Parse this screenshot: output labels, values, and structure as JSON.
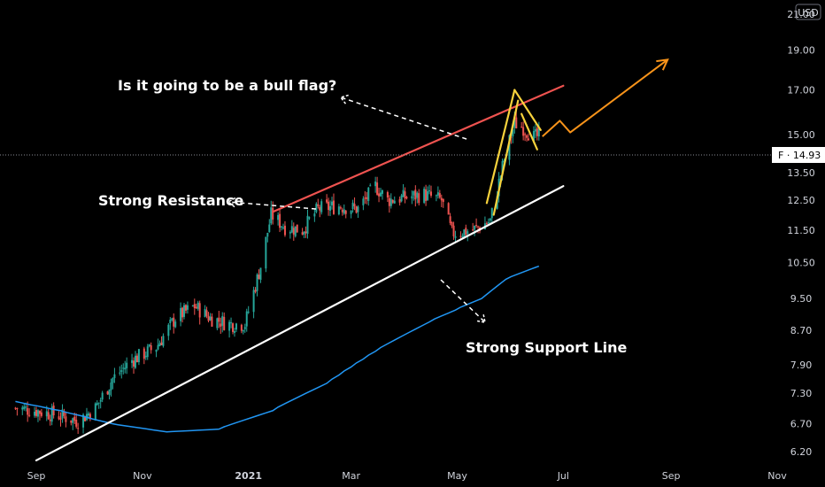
{
  "chart_data": {
    "type": "candlestick",
    "currency": "USD",
    "ticker": "F",
    "last_price_label": "F · 14.93",
    "last_price": 14.93,
    "y_scale": "log",
    "ylim": [
      6.05,
      23.0
    ],
    "y_ticks": [
      "6.20",
      "6.70",
      "7.30",
      "7.90",
      "8.70",
      "9.50",
      "10.50",
      "11.50",
      "12.50",
      "13.50",
      "15.00",
      "17.00",
      "19.00",
      "21.00"
    ],
    "x_ticks": [
      {
        "label": "Sep",
        "date": "2020-09-01",
        "bold": false
      },
      {
        "label": "Nov",
        "date": "2020-11-01",
        "bold": false
      },
      {
        "label": "2021",
        "date": "2021-01-01",
        "bold": true
      },
      {
        "label": "Mar",
        "date": "2021-03-01",
        "bold": false
      },
      {
        "label": "May",
        "date": "2021-05-01",
        "bold": false
      },
      {
        "label": "Jul",
        "date": "2021-07-01",
        "bold": false
      },
      {
        "label": "Sep",
        "date": "2021-09-01",
        "bold": false
      },
      {
        "label": "Nov",
        "date": "2021-11-01",
        "bold": false
      }
    ],
    "price_path": [
      [
        "2020-08-20",
        7.0
      ],
      [
        "2020-09-01",
        6.95
      ],
      [
        "2020-09-15",
        6.85
      ],
      [
        "2020-09-25",
        6.75
      ],
      [
        "2020-10-05",
        7.0
      ],
      [
        "2020-10-15",
        7.6
      ],
      [
        "2020-10-26",
        8.0
      ],
      [
        "2020-11-09",
        8.3
      ],
      [
        "2020-11-20",
        9.0
      ],
      [
        "2020-12-01",
        9.3
      ],
      [
        "2020-12-10",
        9.0
      ],
      [
        "2020-12-21",
        8.85
      ],
      [
        "2020-12-30",
        8.85
      ],
      [
        "2021-01-08",
        10.4
      ],
      [
        "2021-01-14",
        12.0
      ],
      [
        "2021-01-22",
        11.6
      ],
      [
        "2021-02-01",
        11.5
      ],
      [
        "2021-02-10",
        12.2
      ],
      [
        "2021-02-22",
        12.3
      ],
      [
        "2021-03-05",
        12.2
      ],
      [
        "2021-03-15",
        13.0
      ],
      [
        "2021-03-22",
        12.5
      ],
      [
        "2021-04-01",
        12.6
      ],
      [
        "2021-04-12",
        12.7
      ],
      [
        "2021-04-22",
        12.5
      ],
      [
        "2021-04-28",
        11.4
      ],
      [
        "2021-05-10",
        11.5
      ],
      [
        "2021-05-20",
        11.8
      ],
      [
        "2021-05-28",
        14.0
      ],
      [
        "2021-06-03",
        15.5
      ],
      [
        "2021-06-08",
        15.3
      ],
      [
        "2021-06-14",
        14.9
      ],
      [
        "2021-06-17",
        14.93
      ]
    ],
    "moving_average": [
      [
        "2020-08-20",
        7.13
      ],
      [
        "2020-09-15",
        6.95
      ],
      [
        "2020-10-15",
        6.7
      ],
      [
        "2020-11-15",
        6.55
      ],
      [
        "2020-12-15",
        6.6
      ],
      [
        "2021-01-15",
        6.95
      ],
      [
        "2021-02-15",
        7.5
      ],
      [
        "2021-03-15",
        8.2
      ],
      [
        "2021-04-15",
        8.9
      ],
      [
        "2021-05-15",
        9.5
      ],
      [
        "2021-06-01",
        10.1
      ],
      [
        "2021-06-17",
        10.4
      ]
    ],
    "trendlines": [
      {
        "name": "resistance",
        "color": "#ef5350",
        "from": [
          "2021-01-15",
          12.1
        ],
        "to": [
          "2021-07-01",
          17.2
        ]
      },
      {
        "name": "support",
        "color": "#ffffff",
        "from": [
          "2020-09-01",
          6.05
        ],
        "to": [
          "2021-07-01",
          13.0
        ]
      },
      {
        "name": "flag-pole-left",
        "color": "#f7d23c",
        "from": [
          "2021-05-18",
          12.4
        ],
        "to": [
          "2021-06-03",
          17.0
        ]
      },
      {
        "name": "flag-pole-right",
        "color": "#f7d23c",
        "from": [
          "2021-05-22",
          12.0
        ],
        "to": [
          "2021-06-05",
          16.5
        ]
      },
      {
        "name": "flag-top",
        "color": "#f7d23c",
        "from": [
          "2021-06-03",
          17.0
        ],
        "to": [
          "2021-06-18",
          15.2
        ]
      },
      {
        "name": "flag-bottom",
        "color": "#f7d23c",
        "from": [
          "2021-06-07",
          15.9
        ],
        "to": [
          "2021-06-16",
          14.4
        ]
      }
    ],
    "projection": {
      "color": "#f7931a",
      "points": [
        [
          "2021-06-19",
          14.93
        ],
        [
          "2021-06-29",
          15.6
        ],
        [
          "2021-07-05",
          15.1
        ],
        [
          "2021-08-30",
          18.5
        ]
      ]
    },
    "annotations": [
      {
        "name": "bull-flag-question",
        "text": "Is it going to be a bull flag?"
      },
      {
        "name": "strong-resistance",
        "text": "Strong Resistance"
      },
      {
        "name": "strong-support-line",
        "text": "Strong Support Line"
      }
    ],
    "colors": {
      "up": "#26a69a",
      "down": "#ef5350",
      "ma": "#2196f3",
      "background": "#000000"
    }
  }
}
